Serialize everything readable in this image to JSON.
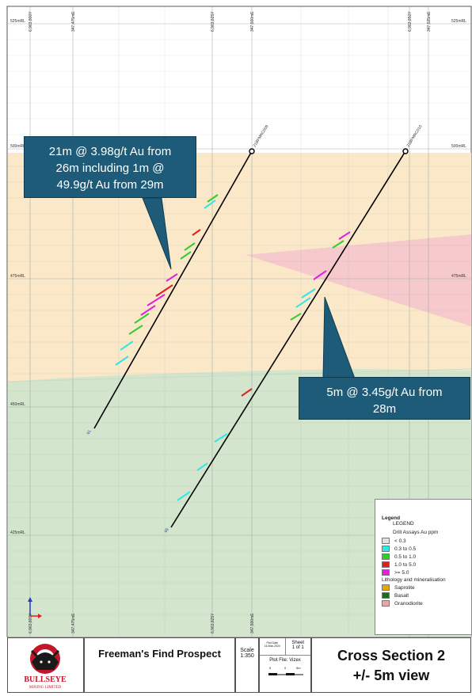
{
  "section": {
    "rl_labels": [
      "525mRL",
      "500mRL",
      "475mRL",
      "450mRL",
      "425mRL"
    ],
    "rl_labels_right": [
      "525mRL",
      "500mRL",
      "475mRL"
    ],
    "easting_labels": [
      "6,963,800Y",
      "347,475mE",
      "6,963,825Y",
      "347,500mE",
      "6,963,850Y",
      "347,525mE"
    ],
    "bottom_easting_labels": [
      "6,963,800Y",
      "347,475mE",
      "6,963,825Y",
      "347,500mE"
    ],
    "hole1": {
      "collar_label": "21BFMRC009",
      "end_label": "61"
    },
    "hole2": {
      "collar_label": "21BFMRC010",
      "end_label": "65"
    }
  },
  "callouts": {
    "hole1": "21m @ 3.98g/t Au from 26m including 1m @ 49.9g/t Au from 29m",
    "hole1_lines": [
      "21m @ 3.98g/t Au from",
      "26m including 1m @",
      "49.9g/t Au from 29m"
    ],
    "hole2_lines": [
      "5m @ 3.45g/t Au from",
      "28m"
    ]
  },
  "legend": {
    "title": "Legend",
    "subtitle": "LEGEND",
    "assay_heading": "Drill Assays Au ppm",
    "assays": [
      {
        "label": "< 0.3",
        "color": "#e0e0e0"
      },
      {
        "label": "0.3 to 0.5",
        "color": "#33e6e6"
      },
      {
        "label": "0.5 to 1.0",
        "color": "#33cc33"
      },
      {
        "label": "1.0 to 5.0",
        "color": "#e02020"
      },
      {
        "label": ">= 5.0",
        "color": "#e020e0"
      }
    ],
    "litho_heading": "Lithology and mineralisation",
    "lithology": [
      {
        "label": "Saprolite",
        "color": "#e8a800"
      },
      {
        "label": "Basalt",
        "color": "#1a6e1a"
      },
      {
        "label": "Granodiorite",
        "color": "#f4a2a8"
      }
    ]
  },
  "title_block": {
    "company": "BULLSEYE",
    "company_sub": "MINING LIMITED",
    "project": "Freeman's Find Prospect",
    "scale_label": "Scale",
    "scale_value": "1:350",
    "plot_date_label": "Plot Date",
    "plot_date": "16-Mar-2024",
    "sheet_label": "Sheet",
    "sheet_value": "1 of 1",
    "plot_file": "Plot File: Vizex",
    "scale_bar": [
      "5",
      "0",
      "5m"
    ],
    "section_title": "Cross Section 2",
    "section_sub": "+/- 5m view"
  },
  "colors": {
    "saprolite": "#fbe8c8",
    "basalt": "#d3e5cd",
    "granodiorite": "#f6c9cd",
    "air": "#ffffff",
    "callout": "#1d5b78"
  }
}
